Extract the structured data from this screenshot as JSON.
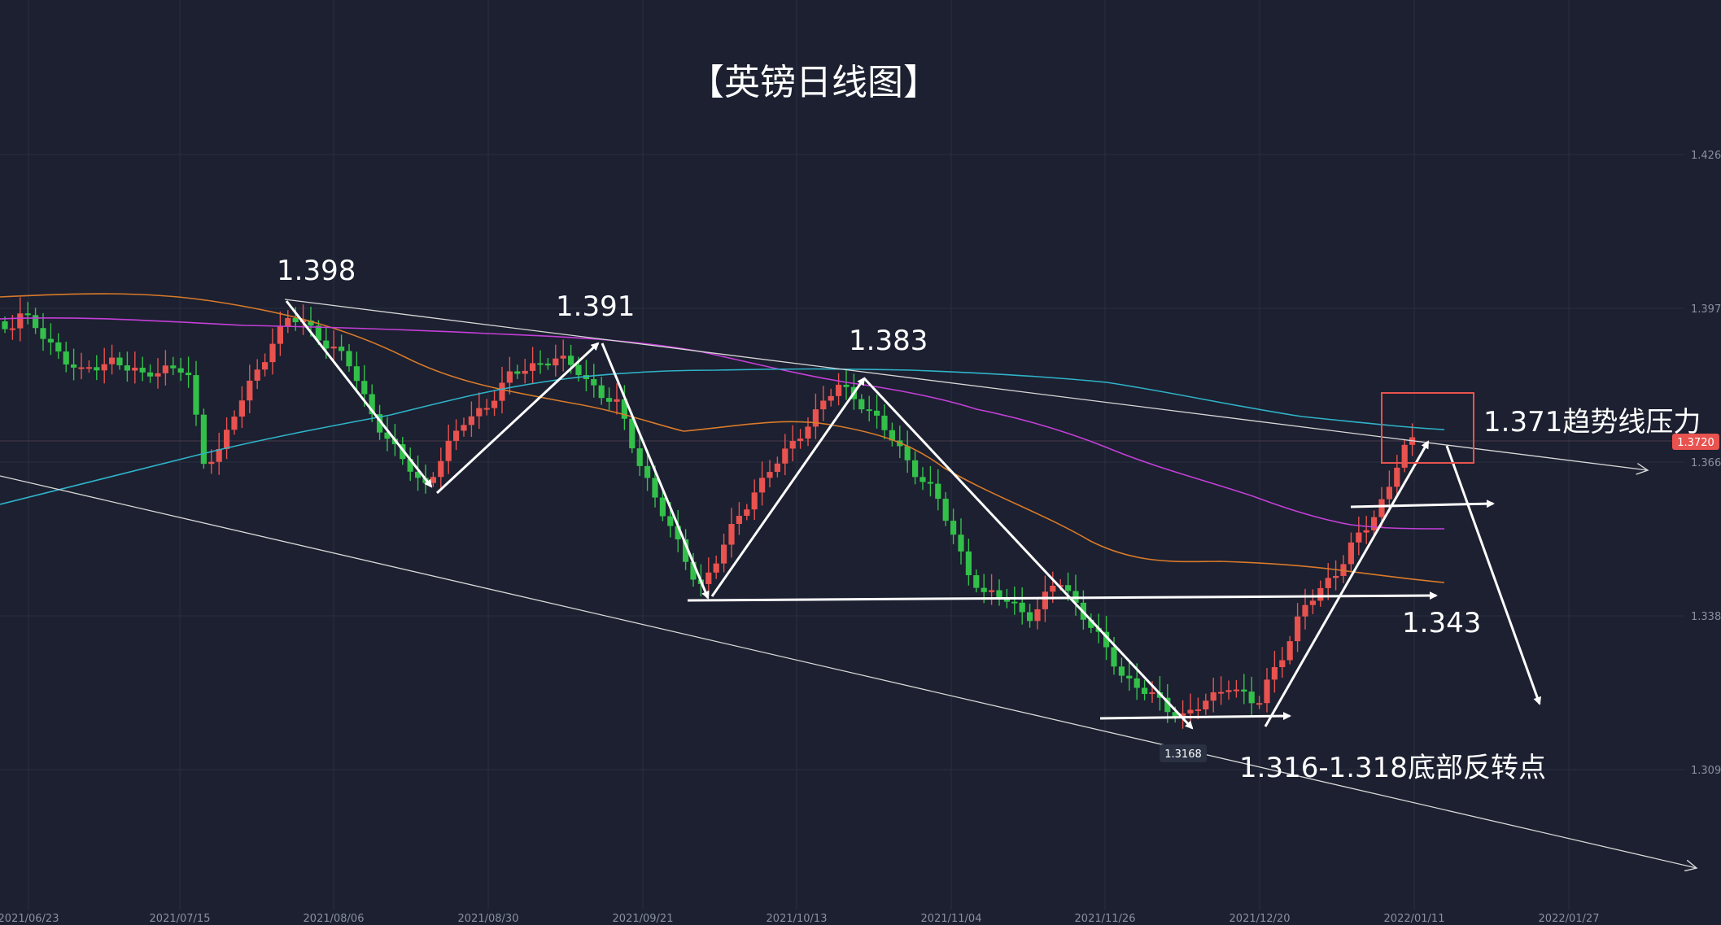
{
  "chart_data": {
    "type": "candlestick",
    "title": "【英镑日线图】",
    "x_ticks": [
      "2021/06/23",
      "2021/07/15",
      "2021/08/06",
      "2021/08/30",
      "2021/09/21",
      "2021/10/13",
      "2021/11/04",
      "2021/11/26",
      "2021/12/20",
      "2022/01/11",
      "2022/01/27"
    ],
    "y_ticks": [
      "1.426",
      "1.397",
      "1.366",
      "1.338",
      "1.309"
    ],
    "ylim": [
      1.3,
      1.43
    ],
    "current_price": "1.3720",
    "low_marker": "1.3168",
    "annotations": {
      "peak1": "1.398",
      "peak2": "1.391",
      "peak3": "1.383",
      "resistance": "1.371趋势线压力",
      "support": "1.343",
      "bottom": "1.316-1.318底部反转点"
    },
    "colors": {
      "background": "#1c2030",
      "up_candle": "#e8524f",
      "down_candle": "#33c04a",
      "ma_orange": "#d97a2a",
      "ma_magenta": "#c43fd8",
      "ma_cyan": "#2fb3c9",
      "annotation": "#ffffff",
      "highlight_box": "#e8524f"
    }
  }
}
